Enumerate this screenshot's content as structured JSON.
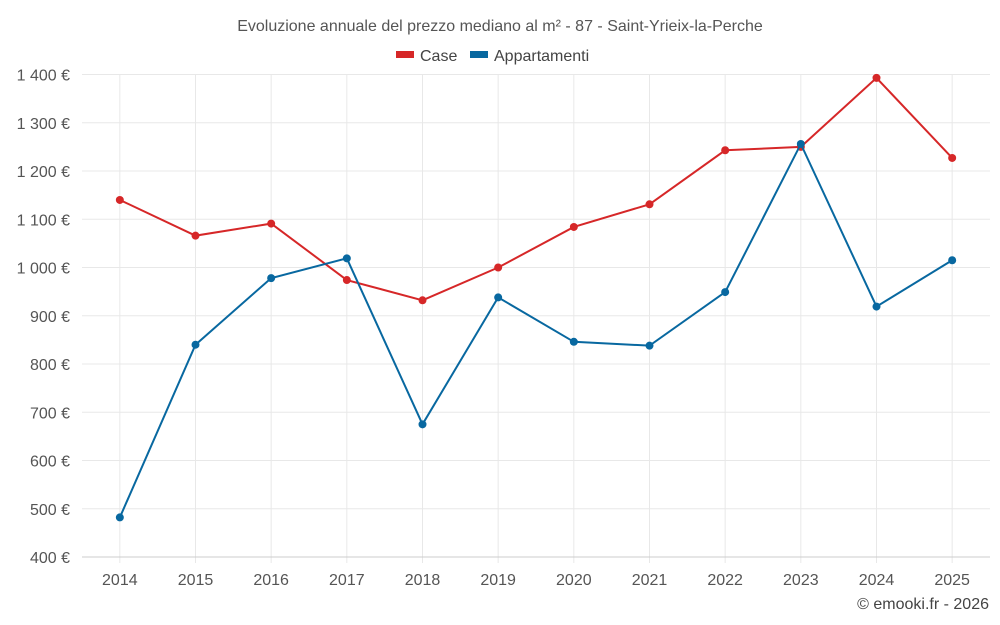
{
  "chart_data": {
    "type": "line",
    "title": "Evoluzione annuale del prezzo mediano al m² - 87 - Saint-Yrieix-la-Perche",
    "xlabel": "",
    "ylabel": "",
    "categories": [
      "2014",
      "2015",
      "2016",
      "2017",
      "2018",
      "2019",
      "2020",
      "2021",
      "2022",
      "2023",
      "2024",
      "2025"
    ],
    "ylim": [
      400,
      1400
    ],
    "yticks": [
      400,
      500,
      600,
      700,
      800,
      900,
      1000,
      1100,
      1200,
      1300,
      1400
    ],
    "ytick_labels": [
      "400 €",
      "500 €",
      "600 €",
      "700 €",
      "800 €",
      "900 €",
      "1 000 €",
      "1 100 €",
      "1 200 €",
      "1 300 €",
      "1 400 €"
    ],
    "grid": true,
    "legend_position": "top-center",
    "series": [
      {
        "name": "Case",
        "color": "#d62728",
        "values": [
          1140,
          1066,
          1091,
          974,
          932,
          1000,
          1084,
          1131,
          1243,
          1250,
          1393,
          1227
        ]
      },
      {
        "name": "Appartamenti",
        "color": "#0868a0",
        "values": [
          482,
          840,
          978,
          1019,
          675,
          938,
          846,
          838,
          949,
          1256,
          919,
          1015
        ]
      }
    ],
    "credit": "© emooki.fr - 2026"
  }
}
